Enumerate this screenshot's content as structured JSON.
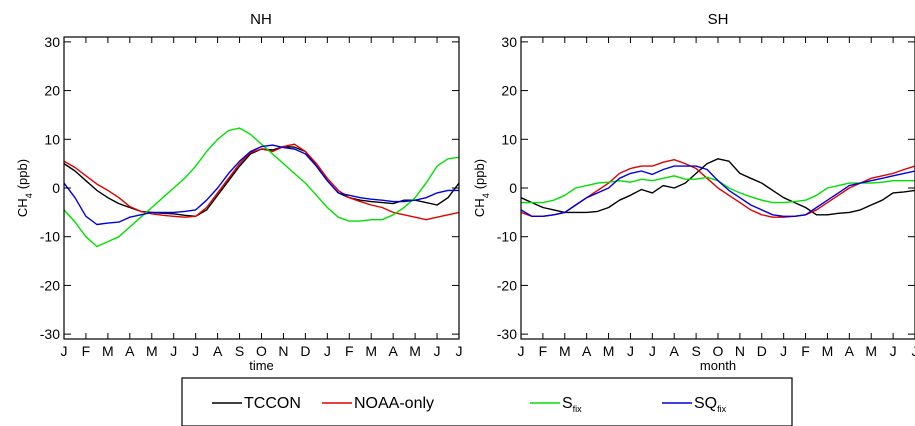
{
  "chart_data": [
    {
      "type": "line",
      "title": "NH",
      "xlabel": "time",
      "ylabel_main": "CH",
      "ylabel_sub": "4",
      "ylabel_unit": "(ppb)",
      "ylim": [
        -31,
        31
      ],
      "yticks": [
        -30,
        -20,
        -10,
        0,
        10,
        20,
        30
      ],
      "xlim": [
        0,
        18
      ],
      "xticks": [
        0,
        1,
        2,
        3,
        4,
        5,
        6,
        7,
        8,
        9,
        10,
        11,
        12,
        13,
        14,
        15,
        16,
        17,
        18
      ],
      "xticklabels": [
        "J",
        "F",
        "M",
        "A",
        "M",
        "J",
        "J",
        "A",
        "S",
        "O",
        "N",
        "D",
        "J",
        "F",
        "M",
        "A",
        "M",
        "J",
        "J"
      ],
      "series": [
        {
          "name": "TCCON",
          "color": "#000000",
          "x": [
            0,
            0.5,
            1,
            1.5,
            2,
            2.5,
            3,
            3.5,
            4,
            4.5,
            5,
            5.5,
            6,
            6.5,
            7,
            7.5,
            8,
            8.5,
            9,
            9.5,
            10,
            10.5,
            11,
            11.5,
            12,
            12.5,
            13,
            13.5,
            14,
            14.5,
            15,
            15.5,
            16,
            16.5,
            17,
            17.5,
            18
          ],
          "y": [
            5,
            3.5,
            1.5,
            -0.5,
            -2,
            -3.2,
            -4,
            -4.8,
            -5,
            -5.2,
            -5.3,
            -5.6,
            -5.8,
            -4.5,
            -1.5,
            1.5,
            4.5,
            7,
            8,
            7.8,
            8.5,
            8.4,
            7.5,
            4.5,
            1.5,
            -1,
            -2,
            -2.5,
            -2.8,
            -3,
            -3.2,
            -2.5,
            -2.5,
            -3,
            -3.5,
            -2,
            1
          ]
        },
        {
          "name": "NOAA-only",
          "color": "#e00000",
          "x": [
            0,
            0.5,
            1,
            1.5,
            2,
            2.5,
            3,
            3.5,
            4,
            4.5,
            5,
            5.5,
            6,
            6.5,
            7,
            7.5,
            8,
            8.5,
            9,
            9.5,
            10,
            10.5,
            11,
            11.5,
            12,
            12.5,
            13,
            13.5,
            14,
            14.5,
            15,
            15.5,
            16,
            16.5,
            17,
            17.5,
            18
          ],
          "y": [
            5.5,
            4.2,
            2.5,
            0.8,
            -0.5,
            -2,
            -3.8,
            -4.8,
            -5.3,
            -5.6,
            -5.8,
            -6,
            -5.8,
            -4,
            -1,
            2,
            5,
            7.3,
            8,
            7.5,
            8.5,
            9,
            7.5,
            5,
            2,
            -0.5,
            -2,
            -2.8,
            -3.5,
            -4,
            -5,
            -5.5,
            -6,
            -6.5,
            -6,
            -5.5,
            -5
          ]
        },
        {
          "name": "S",
          "sub": "fix",
          "color": "#00e000",
          "x": [
            0,
            0.5,
            1,
            1.5,
            2,
            2.5,
            3,
            3.5,
            4,
            4.5,
            5,
            5.5,
            6,
            6.5,
            7,
            7.5,
            8,
            8.5,
            9,
            9.5,
            10,
            10.5,
            11,
            11.5,
            12,
            12.5,
            13,
            13.5,
            14,
            14.5,
            15,
            15.5,
            16,
            16.5,
            17,
            17.5,
            18
          ],
          "y": [
            -4.5,
            -7,
            -10,
            -12,
            -11,
            -10,
            -8,
            -6,
            -4,
            -2,
            0,
            2,
            4.5,
            7.5,
            10,
            11.8,
            12.3,
            11,
            9,
            7,
            5,
            3,
            1,
            -1.5,
            -4,
            -6,
            -6.8,
            -6.8,
            -6.5,
            -6.5,
            -5.5,
            -4,
            -2,
            1,
            4.5,
            6,
            6.3
          ]
        },
        {
          "name": "SQ",
          "sub": "fix",
          "color": "#0000e0",
          "x": [
            0,
            0.5,
            1,
            1.5,
            2,
            2.5,
            3,
            3.5,
            4,
            4.5,
            5,
            5.5,
            6,
            6.5,
            7,
            7.5,
            8,
            8.5,
            9,
            9.5,
            10,
            10.5,
            11,
            11.5,
            12,
            12.5,
            13,
            13.5,
            14,
            14.5,
            15,
            15.5,
            16,
            16.5,
            17,
            17.5,
            18
          ],
          "y": [
            1,
            -2,
            -5.8,
            -7.5,
            -7.2,
            -7,
            -6,
            -5.5,
            -5,
            -5,
            -5,
            -4.8,
            -4.5,
            -2.5,
            0,
            3,
            5.5,
            7.5,
            8.5,
            8.8,
            8.3,
            8,
            7,
            4.5,
            1.5,
            -1,
            -1.5,
            -2,
            -2.3,
            -2.5,
            -2.8,
            -2.8,
            -2.5,
            -2,
            -1,
            -0.5,
            -0.5
          ]
        }
      ]
    },
    {
      "type": "line",
      "title": "SH",
      "xlabel": "month",
      "ylabel_main": "CH",
      "ylabel_sub": "4",
      "ylabel_unit": "(ppb)",
      "ylim": [
        -31,
        31
      ],
      "yticks": [
        -30,
        -20,
        -10,
        0,
        10,
        20,
        30
      ],
      "xlim": [
        0,
        18
      ],
      "xticks": [
        0,
        1,
        2,
        3,
        4,
        5,
        6,
        7,
        8,
        9,
        10,
        11,
        12,
        13,
        14,
        15,
        16,
        17,
        18
      ],
      "xticklabels": [
        "J",
        "F",
        "M",
        "A",
        "M",
        "J",
        "J",
        "A",
        "S",
        "O",
        "N",
        "D",
        "J",
        "F",
        "M",
        "A",
        "M",
        "J",
        "J"
      ],
      "series": [
        {
          "name": "TCCON",
          "color": "#000000",
          "x": [
            0,
            0.5,
            1,
            1.5,
            2,
            2.5,
            3,
            3.5,
            4,
            4.5,
            5,
            5.5,
            6,
            6.5,
            7,
            7.5,
            8,
            8.5,
            9,
            9.5,
            10,
            10.5,
            11,
            11.5,
            12,
            12.5,
            13,
            13.5,
            14,
            14.5,
            15,
            15.5,
            16,
            16.5,
            17,
            17.5,
            18
          ],
          "y": [
            -2,
            -3,
            -4,
            -4.5,
            -5,
            -5,
            -5,
            -4.8,
            -4,
            -2.5,
            -1.5,
            -0.3,
            -1,
            0.5,
            0,
            1,
            3,
            5,
            6,
            5.5,
            3,
            2,
            1,
            -0.5,
            -2,
            -3,
            -4,
            -5.5,
            -5.5,
            -5.2,
            -5,
            -4.5,
            -3.5,
            -2.5,
            -1,
            -0.8,
            -0.5
          ]
        },
        {
          "name": "NOAA-only",
          "color": "#e00000",
          "x": [
            0,
            0.5,
            1,
            1.5,
            2,
            2.5,
            3,
            3.5,
            4,
            4.5,
            5,
            5.5,
            6,
            6.5,
            7,
            7.5,
            8,
            8.5,
            9,
            9.5,
            10,
            10.5,
            11,
            11.5,
            12,
            12.5,
            13,
            13.5,
            14,
            14.5,
            15,
            15.5,
            16,
            16.5,
            17,
            17.5,
            18
          ],
          "y": [
            -5,
            -5.8,
            -5.8,
            -5.5,
            -5,
            -3.5,
            -2,
            -0.5,
            1,
            3,
            4,
            4.5,
            4.5,
            5.3,
            5.8,
            5,
            4,
            2,
            0,
            -1.5,
            -3,
            -4.5,
            -5.5,
            -6,
            -6,
            -5.8,
            -5.5,
            -4.5,
            -3,
            -1.5,
            0,
            1,
            2,
            2.5,
            3,
            3.8,
            4.5
          ]
        },
        {
          "name": "S",
          "sub": "fix",
          "color": "#00e000",
          "x": [
            0,
            0.5,
            1,
            1.5,
            2,
            2.5,
            3,
            3.5,
            4,
            4.5,
            5,
            5.5,
            6,
            6.5,
            7,
            7.5,
            8,
            8.5,
            9,
            9.5,
            10,
            10.5,
            11,
            11.5,
            12,
            12.5,
            13,
            13.5,
            14,
            14.5,
            15,
            15.5,
            16,
            16.5,
            17,
            17.5,
            18
          ],
          "y": [
            -3,
            -3,
            -3,
            -2.5,
            -1.5,
            0,
            0.5,
            1,
            1.2,
            1.5,
            1.2,
            1.8,
            1.5,
            2,
            2.5,
            1.8,
            1.8,
            2.2,
            1.5,
            0,
            -1,
            -1.8,
            -2.5,
            -3,
            -3,
            -2.8,
            -2.5,
            -1.5,
            0,
            0.5,
            1,
            1,
            1,
            1.2,
            1.5,
            1.5,
            1.5
          ]
        },
        {
          "name": "SQ",
          "sub": "fix",
          "color": "#0000e0",
          "x": [
            0,
            0.5,
            1,
            1.5,
            2,
            2.5,
            3,
            3.5,
            4,
            4.5,
            5,
            5.5,
            6,
            6.5,
            7,
            7.5,
            8,
            8.5,
            9,
            9.5,
            10,
            10.5,
            11,
            11.5,
            12,
            12.5,
            13,
            13.5,
            14,
            14.5,
            15,
            15.5,
            16,
            16.5,
            17,
            17.5,
            18
          ],
          "y": [
            -4.5,
            -5.8,
            -5.8,
            -5.5,
            -5,
            -3.5,
            -2,
            -1,
            0,
            2,
            3,
            3.5,
            2.8,
            3.8,
            4.5,
            4.5,
            4.5,
            3.8,
            1.5,
            -0.5,
            -2,
            -3.5,
            -4.5,
            -5.5,
            -5.8,
            -5.8,
            -5.5,
            -4,
            -2.5,
            -1,
            0.5,
            1,
            1.5,
            2,
            2.5,
            3,
            3.5
          ]
        }
      ]
    }
  ],
  "legend": [
    {
      "label": "TCCON",
      "sub": "",
      "color": "#000000"
    },
    {
      "label": "NOAA-only",
      "sub": "",
      "color": "#e00000"
    },
    {
      "label": "S",
      "sub": "fix",
      "color": "#00e000"
    },
    {
      "label": "SQ",
      "sub": "fix",
      "color": "#0000e0"
    }
  ]
}
